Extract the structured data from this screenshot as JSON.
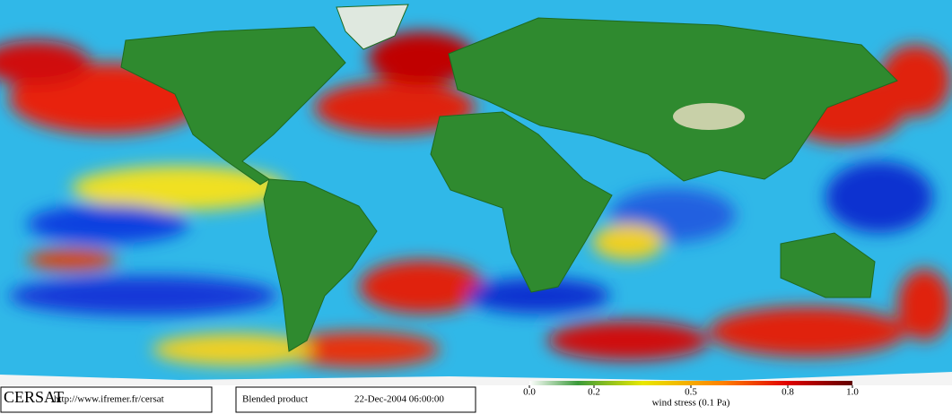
{
  "footer": {
    "logo": "CERSAT",
    "url": "http://www.ifremer.fr/cersat",
    "product": "Blended product",
    "date": "22-Dec-2004 06:00:00"
  },
  "colorbar": {
    "label": "wind stress (0.1 Pa)",
    "lim": [
      0,
      1
    ],
    "ticks": [
      {
        "value": 0,
        "label": "0.0"
      },
      0.2,
      0.5,
      0.8,
      {
        "value": 1,
        "label": "1.0"
      }
    ]
  }
}
